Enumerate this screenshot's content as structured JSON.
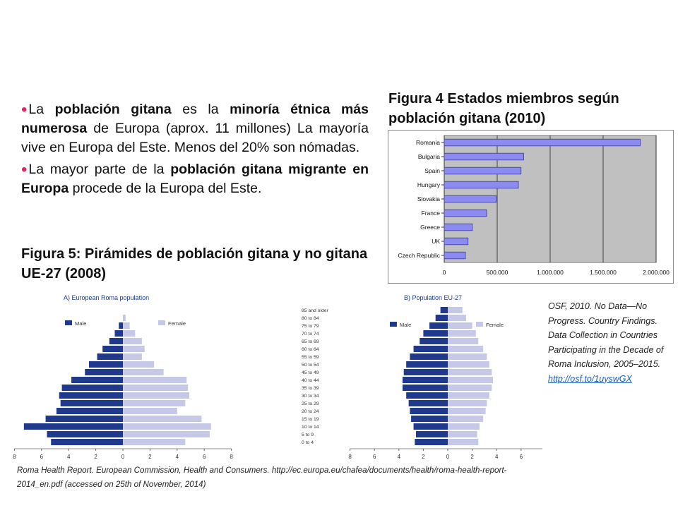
{
  "bullets": {
    "b1": {
      "t1": "La ",
      "b1": "población gitana",
      "t2": " es la ",
      "b2": "minoría étnica más numerosa",
      "t3": " de Europa (aprox. 11 millones) La mayoría vive en Europa del Este. Menos del  20% son nómadas."
    },
    "b2": {
      "t1": "La mayor parte de la ",
      "b1": "población gitana migrante en Europa",
      "t2": " procede de la Europa del Este."
    }
  },
  "fig5_title": "Figura 5: Pirámides de población gitana y no gitana UE-27 (2008)",
  "fig4_title": "Figura 4 Estados miembros según población gitana (2010)",
  "osf_source": {
    "text": "OSF, 2010. No Data—No Progress. Country Findings. Data Collection in Countries Participating in the Decade of Roma Inclusion, 2005–2015.",
    "link": "http://osf.to/1uyswGX"
  },
  "roma_source": "Roma Health Report. European Commission, Health and Consumers. http://ec.europa.eu/chafea/documents/health/roma-health-report-2014_en.pdf  (accessed on 25th of November, 2014)",
  "colors": {
    "bar": "#8c8cf0",
    "plot_bg": "#c0c0c0",
    "male": "#1f3a8c",
    "female": "#c5c8e6",
    "bullet": "#e0285e"
  },
  "chart_data": [
    {
      "type": "bar",
      "orientation": "horizontal",
      "title": "",
      "categories": [
        "Romania",
        "Bulgaria",
        "Spain",
        "Hungary",
        "Slovakia",
        "France",
        "Greece",
        "UK",
        "Czech Republic"
      ],
      "values": [
        1850000,
        750000,
        725000,
        700000,
        490000,
        400000,
        265000,
        225000,
        200000
      ],
      "xlim": [
        0,
        2000000
      ],
      "xticks": [
        "0",
        "500.000",
        "1.000.000",
        "1.500.000",
        "2.000.000"
      ],
      "grid": "vertical"
    },
    {
      "type": "bar",
      "orientation": "horizontal",
      "subtype": "population pyramid",
      "title": "A) European Roma population",
      "legend": [
        "Male",
        "Female"
      ],
      "age_groups": [
        "0 to 4",
        "5 to 9",
        "10 to 14",
        "15 to 19",
        "20 to 24",
        "25 to 29",
        "30 to 34",
        "35 to 39",
        "40 to 44",
        "45 to 49",
        "50 to 54",
        "55 to 59",
        "60 to 64",
        "65 to 69",
        "70 to 74",
        "75 to 79",
        "80 to 84",
        "85 and older"
      ],
      "series": [
        {
          "name": "Male",
          "values": [
            5.3,
            5.6,
            7.3,
            5.7,
            4.9,
            4.6,
            4.7,
            4.5,
            3.8,
            2.8,
            2.5,
            1.9,
            1.5,
            1.0,
            0.6,
            0.3,
            0,
            0
          ]
        },
        {
          "name": "Female",
          "values": [
            4.6,
            6.4,
            6.5,
            5.8,
            4.0,
            4.6,
            4.9,
            4.8,
            4.7,
            3.0,
            2.3,
            1.4,
            1.6,
            1.4,
            0.9,
            0.5,
            0.2,
            0
          ]
        }
      ],
      "xticks": [
        "8",
        "6",
        "4",
        "2",
        "0",
        "2",
        "4",
        "6",
        "8"
      ],
      "xlabel": "(%)"
    },
    {
      "type": "bar",
      "orientation": "horizontal",
      "subtype": "population pyramid",
      "title": "B) Population EU-27",
      "legend": [
        "Male",
        "Female"
      ],
      "age_groups": [
        "0 to 4",
        "5 to 9",
        "10 to 14",
        "15 to 19",
        "20 to 24",
        "25 to 29",
        "30 to 34",
        "35 to 39",
        "40 to 44",
        "45 to 49",
        "50 to 54",
        "55 to 59",
        "60 to 64",
        "65 to 69",
        "70 to 74",
        "75 to 79",
        "80 to 84",
        "85 and older"
      ],
      "series": [
        {
          "name": "Male",
          "values": [
            2.7,
            2.6,
            2.8,
            3.0,
            3.1,
            3.2,
            3.4,
            3.7,
            3.7,
            3.6,
            3.4,
            3.1,
            2.8,
            2.3,
            2.0,
            1.5,
            1.0,
            0.6
          ]
        },
        {
          "name": "Female",
          "values": [
            2.5,
            2.4,
            2.6,
            2.9,
            3.1,
            3.2,
            3.4,
            3.6,
            3.7,
            3.6,
            3.4,
            3.2,
            2.9,
            2.5,
            2.3,
            2.0,
            1.5,
            1.2
          ]
        }
      ],
      "xticks": [
        "8",
        "6",
        "4",
        "2",
        "0",
        "2",
        "4",
        "6",
        "8"
      ],
      "xlabel": "(%)"
    }
  ]
}
